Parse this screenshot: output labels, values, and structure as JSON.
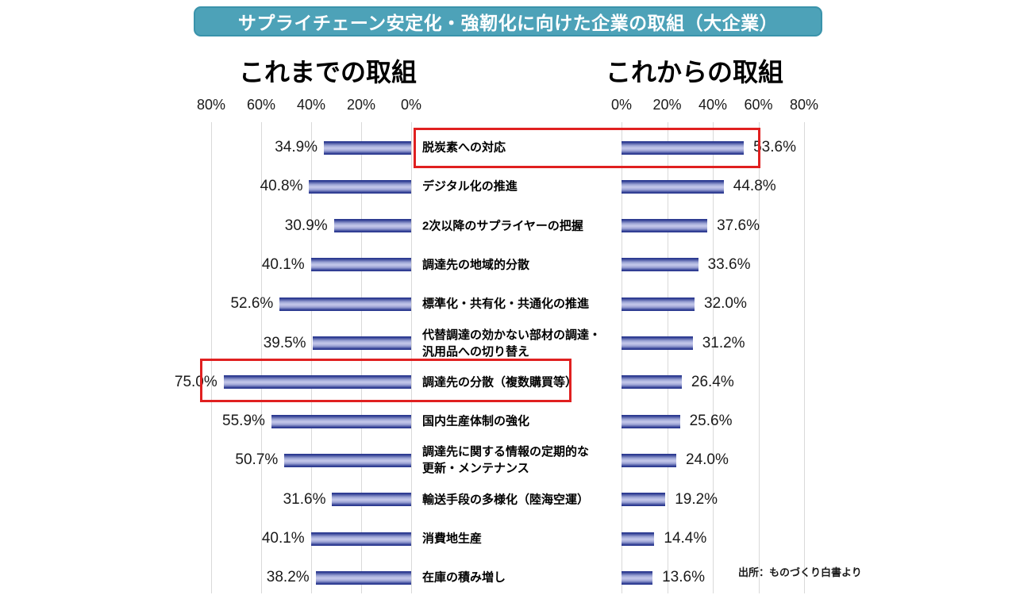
{
  "title": "サプライチェーン安定化・強靭化に向けた企業の取組（大企業）",
  "source": "出所：ものづくり白書より",
  "chart_data": {
    "type": "bar",
    "layout": "diverging-horizontal",
    "left_title": "これまでの取組",
    "right_title": "これからの取組",
    "axis_ticks_left": [
      "80%",
      "60%",
      "40%",
      "20%",
      "0%"
    ],
    "axis_ticks_right": [
      "0%",
      "20%",
      "40%",
      "60%",
      "80%"
    ],
    "xlim": [
      0,
      80
    ],
    "grid": true,
    "value_suffix": "%",
    "categories": [
      "脱炭素への対応",
      "デジタル化の推進",
      "2次以降のサプライヤーの把握",
      "調達先の地域的分散",
      "標準化・共有化・共通化の推進",
      "代替調達の効かない部材の調達・\n汎用品への切り替え",
      "調達先の分散（複数購買等）",
      "国内生産体制の強化",
      "調達先に関する情報の定期的な\n更新・メンテナンス",
      "輸送手段の多様化（陸海空運）",
      "消費地生産",
      "在庫の積み増し"
    ],
    "series": [
      {
        "name": "これまでの取組",
        "values": [
          34.9,
          40.8,
          30.9,
          40.1,
          52.6,
          39.5,
          75.0,
          55.9,
          50.7,
          31.6,
          40.1,
          38.2
        ]
      },
      {
        "name": "これからの取組",
        "values": [
          53.6,
          44.8,
          37.6,
          33.6,
          32.0,
          31.2,
          26.4,
          25.6,
          24.0,
          19.2,
          14.4,
          13.6
        ]
      }
    ],
    "highlights": [
      {
        "category_index": 0,
        "label": "脱炭素への対応",
        "covers": "category-label-and-future-bar"
      },
      {
        "category_index": 6,
        "label": "調達先の分散（複数購買等）",
        "covers": "past-bar-and-category-label"
      }
    ],
    "colors": {
      "bar_dark": "#2B3990",
      "bar_light": "#C0C4E8",
      "gridline": "#D9D9D9",
      "banner_bg": "#4DA2B8",
      "banner_border": "#3A93AB",
      "banner_text": "#FFFFFF",
      "highlight_border": "#E02020",
      "text": "#1A1A1A"
    }
  }
}
